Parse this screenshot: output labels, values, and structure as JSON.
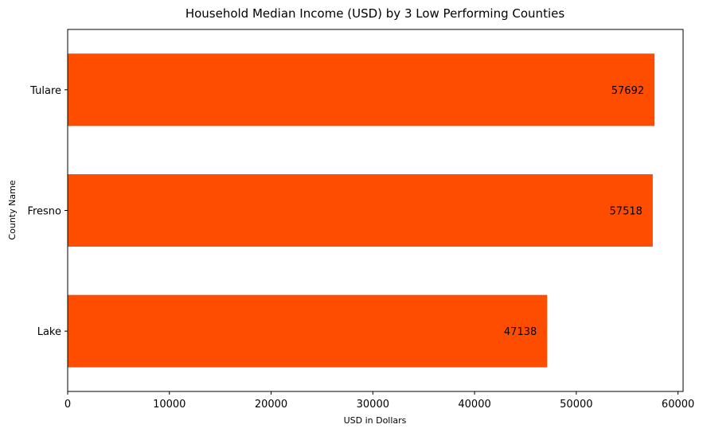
{
  "chart_data": {
    "type": "bar",
    "orientation": "horizontal",
    "title": "Household Median Income (USD) by 3 Low Performing Counties",
    "xlabel": "USD in Dollars",
    "ylabel": "County Name",
    "categories": [
      "Lake",
      "Fresno",
      "Tulare"
    ],
    "values": [
      47138,
      57518,
      57692
    ],
    "data_labels": [
      "47138",
      "57518",
      "57692"
    ],
    "xlim": [
      0,
      60500
    ],
    "xticks": [
      0,
      10000,
      20000,
      30000,
      40000,
      50000,
      60000
    ],
    "xtick_labels": [
      "0",
      "10000",
      "20000",
      "30000",
      "40000",
      "50000",
      "60000"
    ],
    "grid": false,
    "legend": "none",
    "bar_color": "#FF4D00"
  }
}
